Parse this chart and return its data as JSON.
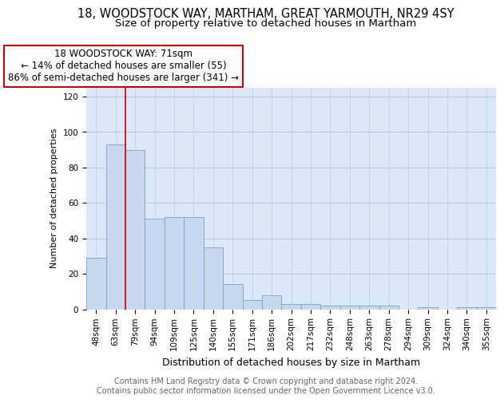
{
  "title_line1": "18, WOODSTOCK WAY, MARTHAM, GREAT YARMOUTH, NR29 4SY",
  "title_line2": "Size of property relative to detached houses in Martham",
  "xlabel": "Distribution of detached houses by size in Martham",
  "ylabel": "Number of detached properties",
  "categories": [
    "48sqm",
    "63sqm",
    "79sqm",
    "94sqm",
    "109sqm",
    "125sqm",
    "140sqm",
    "155sqm",
    "171sqm",
    "186sqm",
    "202sqm",
    "217sqm",
    "232sqm",
    "248sqm",
    "263sqm",
    "278sqm",
    "294sqm",
    "309sqm",
    "324sqm",
    "340sqm",
    "355sqm"
  ],
  "values": [
    29,
    93,
    90,
    51,
    52,
    52,
    35,
    14,
    5,
    8,
    3,
    3,
    2,
    2,
    2,
    2,
    0,
    1,
    0,
    1,
    1
  ],
  "bar_color": "#c8d8ee",
  "bar_edge_color": "#7aa0c8",
  "annotation_line1": "18 WOODSTOCK WAY: 71sqm",
  "annotation_line2": "← 14% of detached houses are smaller (55)",
  "annotation_line3": "86% of semi-detached houses are larger (341) →",
  "vline_color": "#cc0000",
  "box_edge_color": "#cc0000",
  "vline_x": 1.5,
  "ylim": [
    0,
    125
  ],
  "yticks": [
    0,
    20,
    40,
    60,
    80,
    100,
    120
  ],
  "background_color": "#dce8f8",
  "grid_color": "#b8cce4",
  "footer_text": "Contains HM Land Registry data © Crown copyright and database right 2024.\nContains public sector information licensed under the Open Government Licence v3.0.",
  "title_fontsize": 10.5,
  "subtitle_fontsize": 9.5,
  "annotation_fontsize": 8.5,
  "footer_fontsize": 7,
  "ylabel_fontsize": 8,
  "xlabel_fontsize": 9,
  "tick_fontsize": 7.5
}
